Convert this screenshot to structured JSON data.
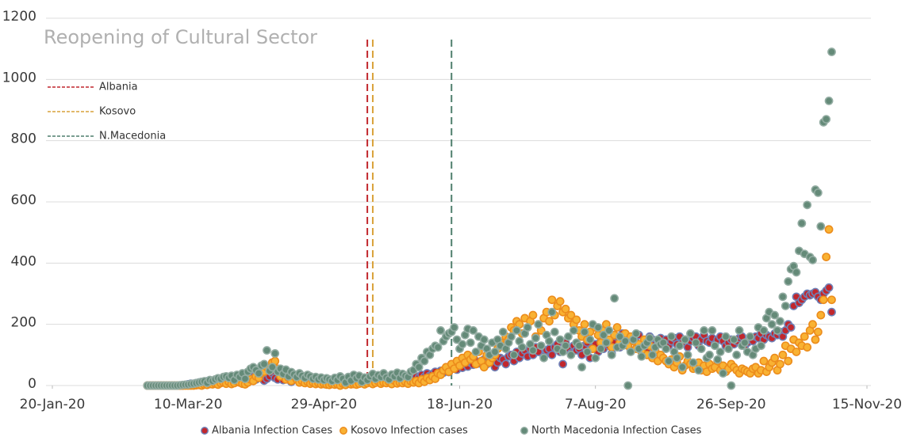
{
  "chart_data": {
    "type": "scatter",
    "xlim": [
      "2020-01-20",
      "2020-11-15"
    ],
    "xticks": [
      {
        "value": "2020-01-20",
        "label": "20-Jan-20"
      },
      {
        "value": "2020-03-10",
        "label": "10-Mar-20"
      },
      {
        "value": "2020-04-29",
        "label": "29-Apr-20"
      },
      {
        "value": "2020-06-18",
        "label": "18-Jun-20"
      },
      {
        "value": "2020-08-07",
        "label": "7-Aug-20"
      },
      {
        "value": "2020-09-26",
        "label": "26-Sep-20"
      },
      {
        "value": "2020-11-15",
        "label": "15-Nov-20"
      }
    ],
    "ylim": [
      0,
      1200
    ],
    "yticks": [
      0,
      200,
      400,
      600,
      800,
      1000,
      1200
    ],
    "grid": true,
    "annotation": {
      "title": "Reopening of Cultural Sector",
      "lines": [
        {
          "name": "Albania",
          "date": "2020-05-15",
          "color": "#c1272d"
        },
        {
          "name": "Kosovo",
          "date": "2020-05-17",
          "color": "#d9a23a"
        },
        {
          "name": "N.Macedonia",
          "date": "2020-06-15",
          "color": "#4f7f6d"
        }
      ]
    },
    "x": [
      "2020-02-24",
      "2020-02-25",
      "2020-02-26",
      "2020-02-27",
      "2020-02-28",
      "2020-02-29",
      "2020-03-01",
      "2020-03-02",
      "2020-03-03",
      "2020-03-04",
      "2020-03-05",
      "2020-03-06",
      "2020-03-07",
      "2020-03-08",
      "2020-03-09",
      "2020-03-10",
      "2020-03-11",
      "2020-03-12",
      "2020-03-13",
      "2020-03-14",
      "2020-03-15",
      "2020-03-16",
      "2020-03-17",
      "2020-03-18",
      "2020-03-19",
      "2020-03-20",
      "2020-03-21",
      "2020-03-22",
      "2020-03-23",
      "2020-03-24",
      "2020-03-25",
      "2020-03-26",
      "2020-03-27",
      "2020-03-28",
      "2020-03-29",
      "2020-03-30",
      "2020-03-31",
      "2020-04-01",
      "2020-04-02",
      "2020-04-03",
      "2020-04-04",
      "2020-04-05",
      "2020-04-06",
      "2020-04-07",
      "2020-04-08",
      "2020-04-09",
      "2020-04-10",
      "2020-04-11",
      "2020-04-12",
      "2020-04-13",
      "2020-04-14",
      "2020-04-15",
      "2020-04-16",
      "2020-04-17",
      "2020-04-18",
      "2020-04-19",
      "2020-04-20",
      "2020-04-21",
      "2020-04-22",
      "2020-04-23",
      "2020-04-24",
      "2020-04-25",
      "2020-04-26",
      "2020-04-27",
      "2020-04-28",
      "2020-04-29",
      "2020-04-30",
      "2020-05-01",
      "2020-05-02",
      "2020-05-03",
      "2020-05-04",
      "2020-05-05",
      "2020-05-06",
      "2020-05-07",
      "2020-05-08",
      "2020-05-09",
      "2020-05-10",
      "2020-05-11",
      "2020-05-12",
      "2020-05-13",
      "2020-05-14",
      "2020-05-15",
      "2020-05-16",
      "2020-05-17",
      "2020-05-18",
      "2020-05-19",
      "2020-05-20",
      "2020-05-21",
      "2020-05-22",
      "2020-05-23",
      "2020-05-24",
      "2020-05-25",
      "2020-05-26",
      "2020-05-27",
      "2020-05-28",
      "2020-05-29",
      "2020-05-30",
      "2020-05-31",
      "2020-06-01",
      "2020-06-02",
      "2020-06-03",
      "2020-06-04",
      "2020-06-05",
      "2020-06-06",
      "2020-06-07",
      "2020-06-08",
      "2020-06-09",
      "2020-06-10",
      "2020-06-11",
      "2020-06-12",
      "2020-06-13",
      "2020-06-14",
      "2020-06-15",
      "2020-06-16",
      "2020-06-17",
      "2020-06-18",
      "2020-06-19",
      "2020-06-20",
      "2020-06-21",
      "2020-06-22",
      "2020-06-23",
      "2020-06-24",
      "2020-06-25",
      "2020-06-26",
      "2020-06-27",
      "2020-06-28",
      "2020-06-29",
      "2020-06-30",
      "2020-07-01",
      "2020-07-02",
      "2020-07-03",
      "2020-07-04",
      "2020-07-05",
      "2020-07-06",
      "2020-07-07",
      "2020-07-08",
      "2020-07-09",
      "2020-07-10",
      "2020-07-11",
      "2020-07-12",
      "2020-07-13",
      "2020-07-14",
      "2020-07-15",
      "2020-07-16",
      "2020-07-17",
      "2020-07-18",
      "2020-07-19",
      "2020-07-20",
      "2020-07-21",
      "2020-07-22",
      "2020-07-23",
      "2020-07-24",
      "2020-07-25",
      "2020-07-26",
      "2020-07-27",
      "2020-07-28",
      "2020-07-29",
      "2020-07-30",
      "2020-07-31",
      "2020-08-01",
      "2020-08-02",
      "2020-08-03",
      "2020-08-04",
      "2020-08-05",
      "2020-08-06",
      "2020-08-07",
      "2020-08-08",
      "2020-08-09",
      "2020-08-10",
      "2020-08-11",
      "2020-08-12",
      "2020-08-13",
      "2020-08-14",
      "2020-08-15",
      "2020-08-16",
      "2020-08-17",
      "2020-08-18",
      "2020-08-19",
      "2020-08-20",
      "2020-08-21",
      "2020-08-22",
      "2020-08-23",
      "2020-08-24",
      "2020-08-25",
      "2020-08-26",
      "2020-08-27",
      "2020-08-28",
      "2020-08-29",
      "2020-08-30",
      "2020-08-31",
      "2020-09-01",
      "2020-09-02",
      "2020-09-03",
      "2020-09-04",
      "2020-09-05",
      "2020-09-06",
      "2020-09-07",
      "2020-09-08",
      "2020-09-09",
      "2020-09-10",
      "2020-09-11",
      "2020-09-12",
      "2020-09-13",
      "2020-09-14",
      "2020-09-15",
      "2020-09-16",
      "2020-09-17",
      "2020-09-18",
      "2020-09-19",
      "2020-09-20",
      "2020-09-21",
      "2020-09-22",
      "2020-09-23",
      "2020-09-24",
      "2020-09-25",
      "2020-09-26",
      "2020-09-27",
      "2020-09-28",
      "2020-09-29",
      "2020-09-30",
      "2020-10-01",
      "2020-10-02",
      "2020-10-03",
      "2020-10-04",
      "2020-10-05",
      "2020-10-06",
      "2020-10-07",
      "2020-10-08",
      "2020-10-09",
      "2020-10-10",
      "2020-10-11",
      "2020-10-12",
      "2020-10-13",
      "2020-10-14",
      "2020-10-15",
      "2020-10-16",
      "2020-10-17",
      "2020-10-18",
      "2020-10-19",
      "2020-10-20",
      "2020-10-21",
      "2020-10-22",
      "2020-10-23",
      "2020-10-24",
      "2020-10-25",
      "2020-10-26",
      "2020-10-27",
      "2020-10-28",
      "2020-10-29",
      "2020-10-30",
      "2020-10-31",
      "2020-11-01",
      "2020-11-02"
    ],
    "series": [
      {
        "name": "Albania Infection Cases",
        "color": "#c1272d",
        "edge": "#6f82b8",
        "values": [
          0,
          0,
          0,
          0,
          0,
          0,
          0,
          0,
          0,
          0,
          0,
          0,
          0,
          0,
          2,
          4,
          6,
          5,
          8,
          10,
          12,
          8,
          14,
          10,
          16,
          12,
          18,
          20,
          22,
          16,
          24,
          28,
          26,
          20,
          22,
          30,
          25,
          18,
          30,
          24,
          20,
          35,
          28,
          16,
          22,
          30,
          40,
          25,
          20,
          35,
          18,
          30,
          22,
          12,
          26,
          20,
          15,
          28,
          18,
          22,
          10,
          24,
          16,
          12,
          20,
          8,
          14,
          10,
          16,
          8,
          12,
          14,
          6,
          18,
          10,
          12,
          8,
          5,
          15,
          20,
          12,
          18,
          24,
          14,
          22,
          30,
          16,
          26,
          20,
          28,
          18,
          24,
          32,
          22,
          20,
          28,
          18,
          26,
          22,
          30,
          26,
          35,
          28,
          40,
          32,
          38,
          45,
          36,
          48,
          42,
          50,
          44,
          55,
          60,
          52,
          65,
          58,
          70,
          62,
          75,
          68,
          80,
          72,
          78,
          85,
          70,
          90,
          82,
          60,
          75,
          90,
          85,
          70,
          95,
          100,
          80,
          110,
          90,
          105,
          115,
          95,
          120,
          100,
          125,
          110,
          130,
          95,
          115,
          120,
          100,
          125,
          135,
          110,
          70,
          140,
          120,
          105,
          130,
          115,
          120,
          100,
          130,
          140,
          90,
          125,
          135,
          110,
          145,
          120,
          150,
          130,
          105,
          140,
          160,
          125,
          170,
          135,
          150,
          115,
          155,
          140,
          165,
          130,
          145,
          120,
          160,
          150,
          135,
          145,
          155,
          140,
          150,
          130,
          145,
          155,
          135,
          160,
          140,
          150,
          125,
          145,
          155,
          160,
          130,
          150,
          165,
          145,
          140,
          155,
          135,
          150,
          160,
          145,
          130,
          140,
          150,
          135,
          145,
          155,
          160,
          130,
          140,
          150,
          145,
          160,
          155,
          170,
          150,
          165,
          160,
          155,
          170,
          165,
          175,
          160,
          180,
          200,
          190,
          260,
          290,
          270,
          280,
          290,
          300,
          295,
          300,
          305,
          290,
          280,
          300,
          310,
          320,
          240
        ]
      },
      {
        "name": "Kosovo Infection cases",
        "color": "#f9b233",
        "edge": "#ec8c1c",
        "values": [
          0,
          0,
          0,
          0,
          0,
          0,
          0,
          0,
          0,
          0,
          0,
          0,
          0,
          0,
          0,
          0,
          0,
          0,
          1,
          2,
          0,
          3,
          2,
          5,
          4,
          6,
          3,
          8,
          10,
          6,
          12,
          5,
          8,
          14,
          10,
          6,
          4,
          10,
          20,
          15,
          30,
          25,
          40,
          45,
          60,
          50,
          75,
          80,
          55,
          30,
          40,
          20,
          25,
          15,
          30,
          20,
          10,
          15,
          8,
          12,
          6,
          10,
          5,
          8,
          4,
          6,
          3,
          2,
          5,
          3,
          4,
          0,
          6,
          2,
          8,
          4,
          5,
          3,
          6,
          10,
          4,
          8,
          12,
          5,
          9,
          14,
          6,
          10,
          8,
          12,
          5,
          16,
          7,
          10,
          8,
          12,
          6,
          14,
          10,
          15,
          8,
          20,
          12,
          25,
          18,
          30,
          22,
          40,
          35,
          50,
          60,
          45,
          70,
          55,
          80,
          65,
          90,
          75,
          100,
          85,
          95,
          70,
          110,
          80,
          60,
          100,
          75,
          90,
          100,
          120,
          140,
          130,
          160,
          150,
          190,
          180,
          210,
          200,
          170,
          220,
          190,
          210,
          230,
          160,
          200,
          180,
          220,
          240,
          210,
          280,
          230,
          260,
          275,
          240,
          250,
          220,
          230,
          200,
          215,
          180,
          160,
          200,
          150,
          175,
          120,
          190,
          165,
          140,
          180,
          200,
          150,
          125,
          165,
          190,
          140,
          155,
          170,
          130,
          160,
          145,
          120,
          135,
          110,
          150,
          100,
          130,
          90,
          115,
          80,
          100,
          90,
          80,
          70,
          85,
          60,
          75,
          95,
          50,
          65,
          80,
          70,
          55,
          60,
          75,
          50,
          65,
          45,
          70,
          55,
          60,
          80,
          50,
          65,
          45,
          55,
          70,
          60,
          50,
          40,
          55,
          50,
          45,
          40,
          55,
          60,
          40,
          50,
          80,
          45,
          60,
          75,
          90,
          50,
          70,
          100,
          130,
          80,
          120,
          150,
          110,
          140,
          130,
          160,
          125,
          180,
          200,
          150,
          175,
          230,
          280,
          420,
          510,
          280
        ]
      },
      {
        "name": "North Macedonia Infection Cases",
        "color": "#648a78",
        "edge": "#93aca2",
        "values": [
          0,
          0,
          0,
          0,
          0,
          0,
          0,
          0,
          0,
          0,
          0,
          0,
          1,
          2,
          3,
          3,
          5,
          6,
          8,
          10,
          12,
          14,
          9,
          18,
          15,
          20,
          24,
          22,
          28,
          30,
          25,
          32,
          18,
          35,
          28,
          40,
          22,
          45,
          55,
          60,
          50,
          40,
          65,
          70,
          115,
          48,
          60,
          105,
          45,
          55,
          38,
          52,
          30,
          44,
          36,
          28,
          40,
          32,
          25,
          35,
          30,
          22,
          28,
          20,
          26,
          18,
          24,
          20,
          15,
          25,
          18,
          30,
          22,
          10,
          28,
          16,
          35,
          24,
          32,
          12,
          26,
          18,
          30,
          38,
          22,
          34,
          28,
          40,
          26,
          20,
          36,
          30,
          42,
          24,
          38,
          32,
          28,
          45,
          50,
          70,
          60,
          90,
          80,
          110,
          100,
          120,
          130,
          125,
          180,
          145,
          160,
          170,
          175,
          190,
          150,
          120,
          135,
          165,
          185,
          140,
          180,
          110,
          160,
          130,
          150,
          120,
          100,
          140,
          110,
          150,
          130,
          175,
          120,
          140,
          160,
          100,
          180,
          145,
          125,
          170,
          190,
          135,
          115,
          155,
          200,
          130,
          90,
          165,
          145,
          240,
          175,
          120,
          150,
          110,
          130,
          160,
          100,
          180,
          140,
          130,
          60,
          175,
          110,
          150,
          200,
          90,
          190,
          120,
          165,
          140,
          180,
          100,
          285,
          125,
          160,
          130,
          145,
          0,
          110,
          150,
          170,
          120,
          95,
          130,
          140,
          155,
          100,
          125,
          150,
          135,
          140,
          120,
          80,
          160,
          110,
          90,
          130,
          60,
          150,
          100,
          170,
          75,
          140,
          50,
          120,
          180,
          90,
          100,
          180,
          130,
          85,
          110,
          40,
          160,
          120,
          0,
          150,
          100,
          180,
          130,
          140,
          110,
          160,
          100,
          120,
          190,
          130,
          180,
          220,
          240,
          200,
          230,
          180,
          210,
          290,
          260,
          340,
          380,
          390,
          370,
          440,
          530,
          430,
          590,
          420,
          410,
          640,
          630,
          520,
          860,
          870,
          930,
          1090
        ]
      }
    ]
  }
}
